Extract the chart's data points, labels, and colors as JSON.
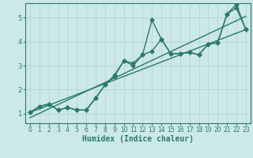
{
  "xlabel": "Humidex (Indice chaleur)",
  "bg_color": "#cce8e8",
  "grid_color": "#b0d0d0",
  "line_color": "#2a7a6a",
  "xlim": [
    -0.5,
    23.5
  ],
  "ylim": [
    0.6,
    5.6
  ],
  "xticks": [
    0,
    1,
    2,
    3,
    4,
    5,
    6,
    7,
    8,
    9,
    10,
    11,
    12,
    13,
    14,
    15,
    16,
    17,
    18,
    19,
    20,
    21,
    22,
    23
  ],
  "yticks": [
    1,
    2,
    3,
    4,
    5
  ],
  "series1_x": [
    0,
    1,
    2,
    3,
    4,
    5,
    6,
    7,
    8,
    9,
    10,
    11,
    12,
    13,
    14,
    15,
    16,
    17,
    18,
    19,
    20,
    21,
    22,
    23
  ],
  "series1_y": [
    1.05,
    1.3,
    1.4,
    1.15,
    1.25,
    1.15,
    1.15,
    1.65,
    2.2,
    2.6,
    3.2,
    3.0,
    3.45,
    4.9,
    4.1,
    3.5,
    3.5,
    3.55,
    3.45,
    3.9,
    3.95,
    5.15,
    5.55,
    4.5
  ],
  "series2_x": [
    0,
    1,
    2,
    3,
    4,
    5,
    6,
    7,
    8,
    9,
    10,
    11,
    12,
    13,
    14,
    15,
    16,
    17,
    18,
    19,
    20,
    21,
    22,
    23
  ],
  "series2_y": [
    1.05,
    1.3,
    1.4,
    1.15,
    1.25,
    1.15,
    1.15,
    1.65,
    2.2,
    2.55,
    3.2,
    3.1,
    3.45,
    3.6,
    4.1,
    3.5,
    3.5,
    3.55,
    3.45,
    3.9,
    3.95,
    5.15,
    5.4,
    4.5
  ],
  "marker": "D",
  "markersize": 2.5,
  "linewidth": 1.0,
  "xlabel_fontsize": 7,
  "tick_fontsize": 5.5
}
